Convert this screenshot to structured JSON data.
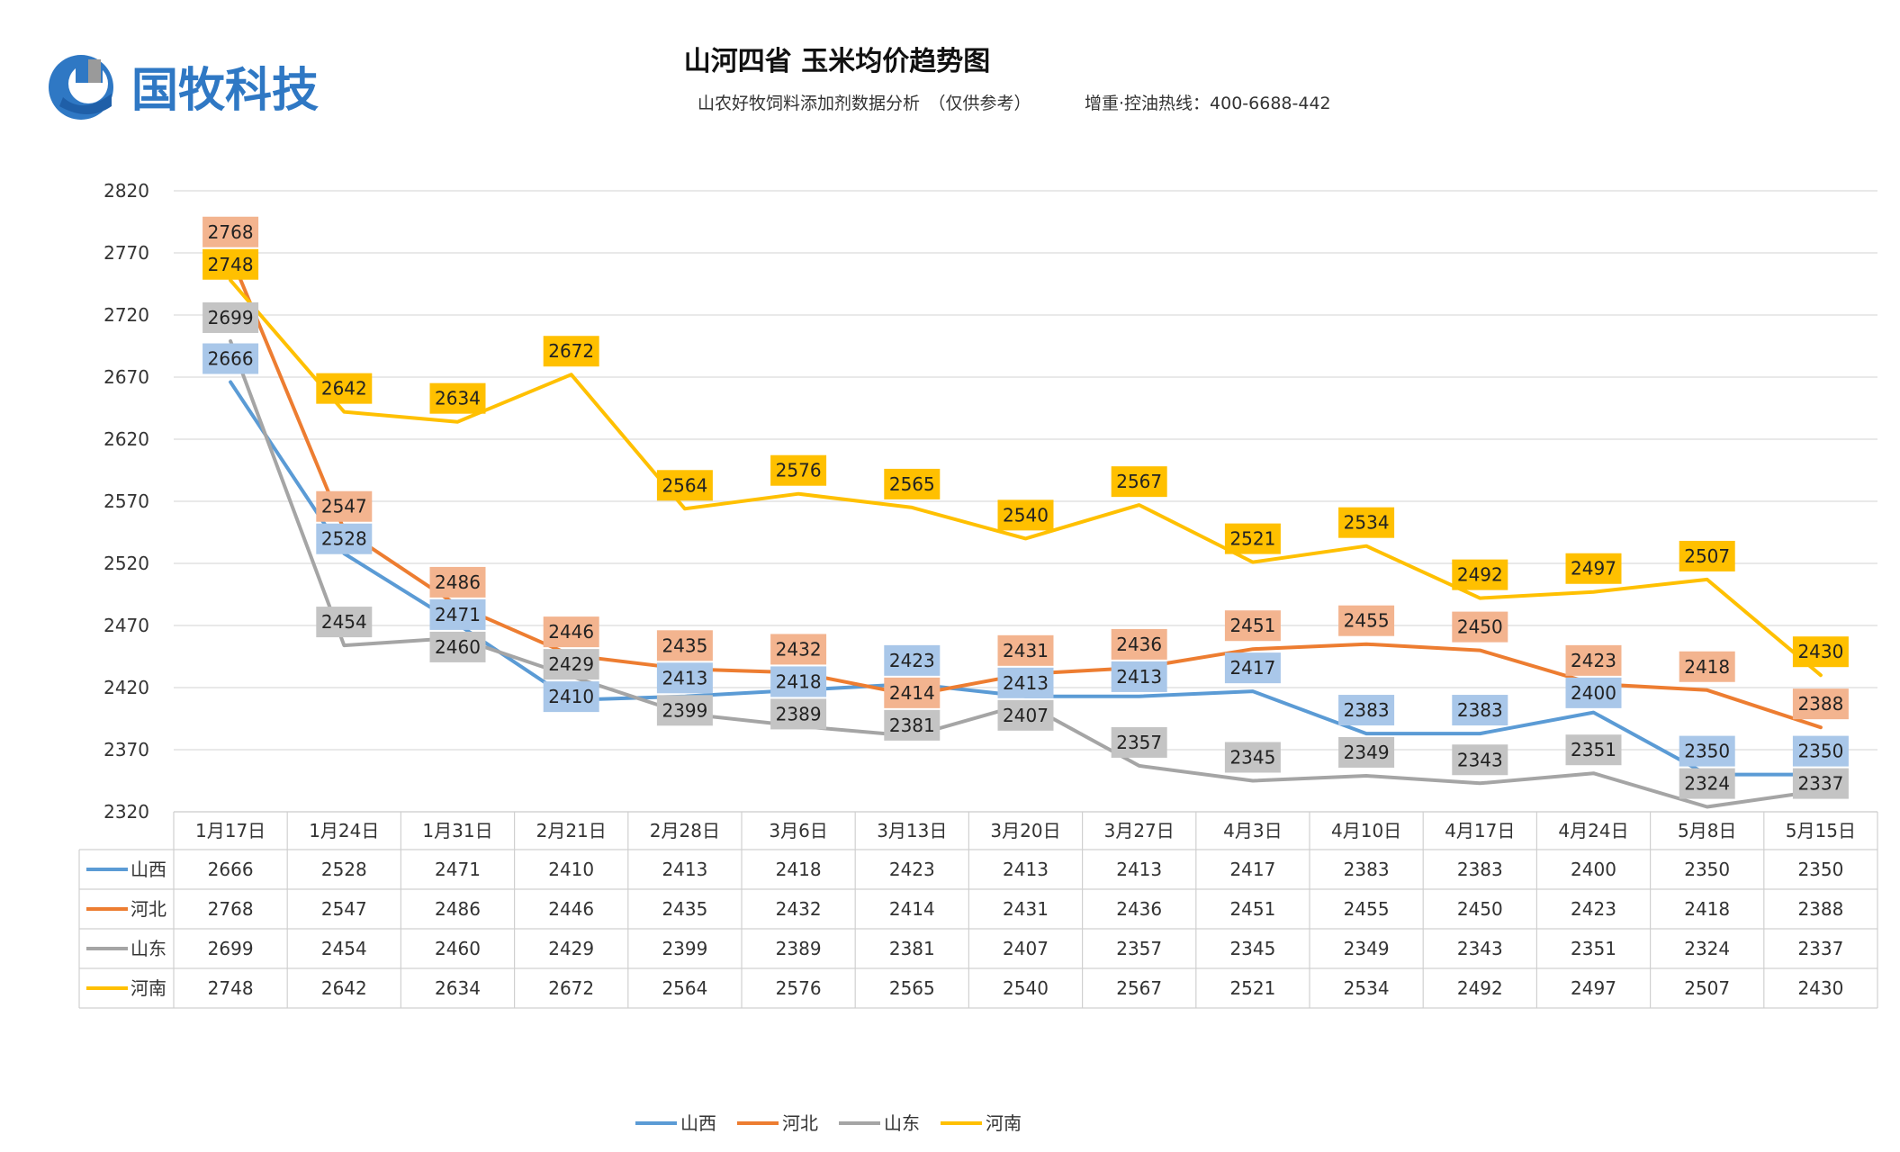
{
  "brand": {
    "name": "国牧科技",
    "colors": {
      "blue": "#2f78c4",
      "grey": "#8a8a8a"
    }
  },
  "chart_data": {
    "type": "line",
    "title": "山河四省 玉米均价趋势图",
    "subtitle_left": "山农好牧饲料添加剂数据分析　（仅供参考）",
    "subtitle_right": "增重·控油热线：400-6688-442",
    "xlabel": "",
    "ylabel": "",
    "ylim": [
      2320,
      2820
    ],
    "yticks": [
      2320,
      2370,
      2420,
      2470,
      2520,
      2570,
      2620,
      2670,
      2720,
      2770,
      2820
    ],
    "grid": true,
    "legend_position": "bottom-center",
    "categories": [
      "1月17日",
      "1月24日",
      "1月31日",
      "2月21日",
      "2月28日",
      "3月6日",
      "3月13日",
      "3月20日",
      "3月27日",
      "4月3日",
      "4月10日",
      "4月17日",
      "4月24日",
      "5月8日",
      "5月15日"
    ],
    "series": [
      {
        "name": "山西",
        "color": "#5b9bd5",
        "labelColor": "#a9c7e9",
        "values": [
          2666,
          2528,
          2471,
          2410,
          2413,
          2418,
          2423,
          2413,
          2413,
          2417,
          2383,
          2383,
          2400,
          2350,
          2350
        ]
      },
      {
        "name": "河北",
        "color": "#ed7d31",
        "labelColor": "#f3b48f",
        "values": [
          2768,
          2547,
          2486,
          2446,
          2435,
          2432,
          2414,
          2431,
          2436,
          2451,
          2455,
          2450,
          2423,
          2418,
          2388
        ]
      },
      {
        "name": "山东",
        "color": "#a5a5a5",
        "labelColor": "#c4c4c4",
        "values": [
          2699,
          2454,
          2460,
          2429,
          2399,
          2389,
          2381,
          2407,
          2357,
          2345,
          2349,
          2343,
          2351,
          2324,
          2337
        ]
      },
      {
        "name": "河南",
        "color": "#ffc000",
        "labelColor": "#ffc000",
        "values": [
          2748,
          2642,
          2634,
          2672,
          2564,
          2576,
          2565,
          2540,
          2567,
          2521,
          2534,
          2492,
          2497,
          2507,
          2430
        ]
      }
    ]
  }
}
